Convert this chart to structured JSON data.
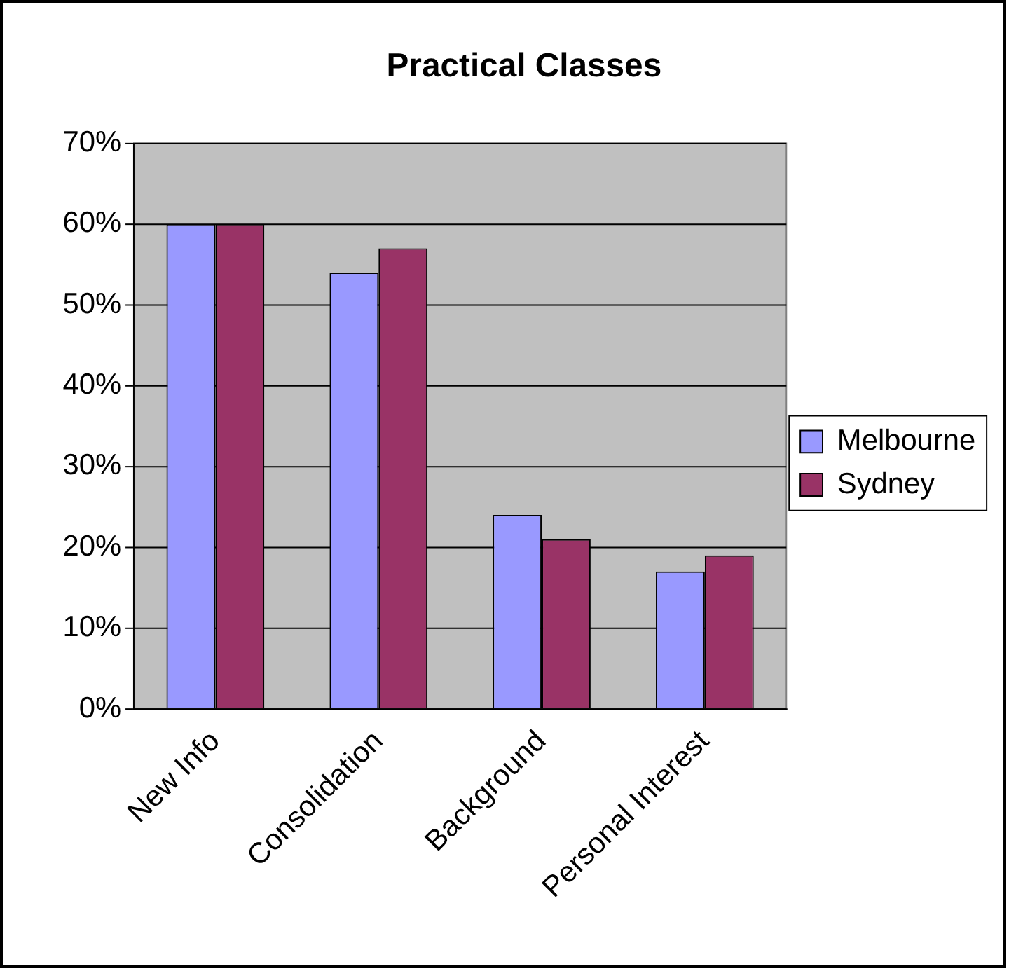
{
  "chart_data": {
    "type": "bar",
    "title": "Practical Classes",
    "categories": [
      "New Info",
      "Consolidation",
      "Background",
      "Personal Interest"
    ],
    "series": [
      {
        "name": "Melbourne",
        "color": "#9999ff",
        "values": [
          60,
          54,
          24,
          17
        ]
      },
      {
        "name": "Sydney",
        "color": "#993366",
        "values": [
          60,
          57,
          21,
          19
        ]
      }
    ],
    "ylim": [
      0,
      70
    ],
    "yticks": [
      {
        "value": 0,
        "label": "0%"
      },
      {
        "value": 10,
        "label": "10%"
      },
      {
        "value": 20,
        "label": "20%"
      },
      {
        "value": 30,
        "label": "30%"
      },
      {
        "value": 40,
        "label": "40%"
      },
      {
        "value": 50,
        "label": "50%"
      },
      {
        "value": 60,
        "label": "60%"
      },
      {
        "value": 70,
        "label": "70%"
      }
    ],
    "grid": "y",
    "legend": "right"
  }
}
